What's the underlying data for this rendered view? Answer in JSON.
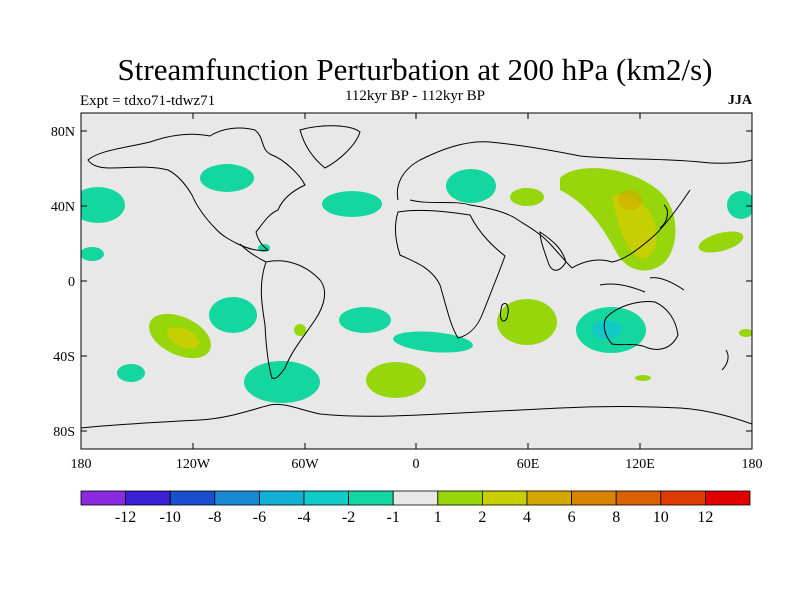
{
  "title": "Streamfunction Perturbation at 200 hPa (km2/s)",
  "experiment": "Expt = tdxo71-tdwz71",
  "period": "112kyr BP - 112kyr BP",
  "season": "JJA",
  "lat_ticks": [
    "80N",
    "40N",
    "0",
    "40S",
    "80S"
  ],
  "lon_ticks": [
    "180",
    "120W",
    "60W",
    "0",
    "60E",
    "120E",
    "180"
  ],
  "colorbar": {
    "colors": [
      "#8a2be2",
      "#3a1fd6",
      "#1a4fd0",
      "#1a8ad6",
      "#12b0d4",
      "#10ccc8",
      "#14d7a0",
      "#e8e8e8",
      "#97d60a",
      "#c8cf00",
      "#d4a800",
      "#d88400",
      "#db6000",
      "#de3c00",
      "#e00000"
    ],
    "labels": [
      "-12",
      "-10",
      "-8",
      "-6",
      "-4",
      "-2",
      "-1",
      "1",
      "2",
      "4",
      "6",
      "8",
      "10",
      "12"
    ]
  },
  "colors": {
    "ocean": "#e8e8e8",
    "neg1": "#14d7a0",
    "neg2": "#12c9c8",
    "pos1": "#97d60a",
    "pos2": "#c8cf00",
    "pos3": "#d4a800"
  }
}
